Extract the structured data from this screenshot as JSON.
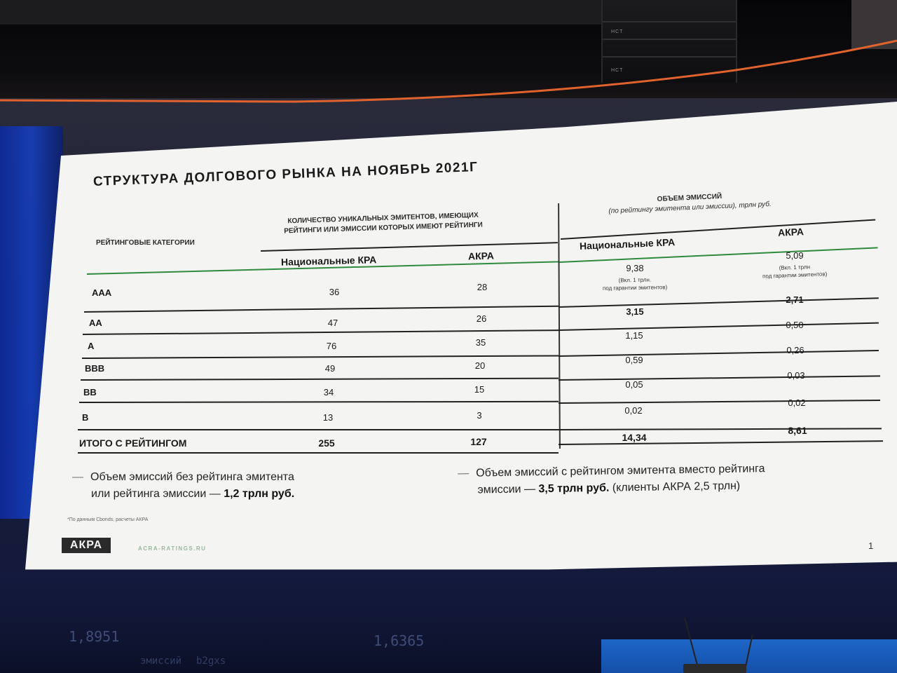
{
  "slide": {
    "title": "СТРУКТУРА ДОЛГОВОГО РЫНКА НА НОЯБРЬ 2021Г",
    "header_categories": "РЕЙТИНГОВЫЕ КАТЕГОРИИ",
    "header_count_line1": "КОЛИЧЕСТВО УНИКАЛЬНЫХ ЭМИТЕНТОВ, ИМЕЮЩИХ",
    "header_count_line2": "РЕЙТИНГИ ИЛИ ЭМИССИИ КОТОРЫХ ИМЕЮТ РЕЙТИНГИ",
    "header_volume_line1": "ОБЪЕМ ЭМИССИЙ",
    "header_volume_line2": "(по рейтингу эмитента или эмиссии), трлн руб.",
    "sub_national_1": "Национальные КРА",
    "sub_acra_1": "АКРА",
    "sub_national_2": "Национальные КРА",
    "sub_acra_2": "АКРА",
    "rows": [
      {
        "cat": "AAA",
        "n_nat": "36",
        "n_acra": "28",
        "v_nat": "9,38",
        "v_nat_note1": "(Вкл. 1 трлн.",
        "v_nat_note2": "под гарантии эмитентов)",
        "v_acra": "5,09",
        "v_acra_note1": "(Вкл. 1 трлн",
        "v_acra_note2": "под гарантии эмитентов)"
      },
      {
        "cat": "AA",
        "n_nat": "47",
        "n_acra": "26",
        "v_nat": "3,15",
        "v_acra": "2,71"
      },
      {
        "cat": "A",
        "n_nat": "76",
        "n_acra": "35",
        "v_nat": "1,15",
        "v_acra": "0,50"
      },
      {
        "cat": "BBB",
        "n_nat": "49",
        "n_acra": "20",
        "v_nat": "0,59",
        "v_acra": "0,26"
      },
      {
        "cat": "BB",
        "n_nat": "34",
        "n_acra": "15",
        "v_nat": "0,05",
        "v_acra": "0,03"
      },
      {
        "cat": "B",
        "n_nat": "13",
        "n_acra": "3",
        "v_nat": "0,02",
        "v_acra": "0,02"
      }
    ],
    "total": {
      "cat": "ИТОГО С РЕЙТИНГОМ",
      "n_nat": "255",
      "n_acra": "127",
      "v_nat": "14,34",
      "v_acra": "8,61"
    },
    "note_left_line1": "Объем эмиссий без рейтинга эмитента",
    "note_left_line2_a": "или рейтинга эмиссии — ",
    "note_left_line2_b": "1,2 трлн руб.",
    "note_right_line1": "Объем эмиссий с рейтингом эмитента вместо рейтинга",
    "note_right_line2_a": "эмиссии — ",
    "note_right_line2_b": "3,5 трлн руб.",
    "note_right_line2_c": " (клиенты АКРА 2,5 трлн)",
    "source": "*По данным Cbonds, расчеты АКРА",
    "logo": "АКРА",
    "site": "ACRA-RATINGS.RU",
    "page": "1"
  },
  "room": {
    "bg_number_1": "1,8951",
    "bg_number_2": "1,6365",
    "bg_text_1": "эмиссий",
    "bg_text_2": "b2gxs"
  },
  "colors": {
    "slide_bg": "#f4f4f2",
    "accent_green": "#2f8a3e",
    "screen_blue": "#1540c4"
  }
}
